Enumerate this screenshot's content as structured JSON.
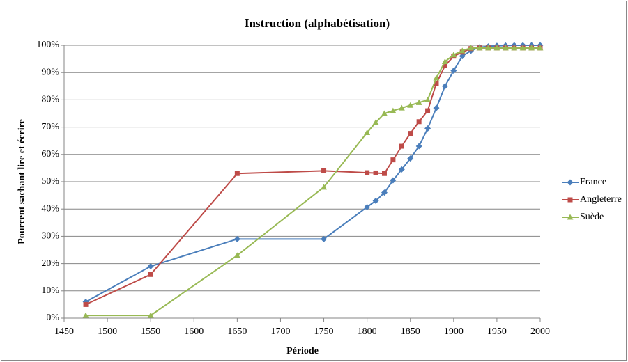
{
  "chart_data": {
    "type": "line",
    "title": "Instruction (alphabétisation)",
    "x_label": "Période",
    "y_label": "Pourcent sachant lire et écrire",
    "x": [
      1475,
      1550,
      1650,
      1750,
      1800,
      1810,
      1820,
      1830,
      1840,
      1850,
      1860,
      1870,
      1880,
      1890,
      1900,
      1910,
      1920,
      1930,
      1940,
      1950,
      1960,
      1970,
      1980,
      1990,
      2000
    ],
    "series": [
      {
        "name": "France",
        "color": "#4a7ebb",
        "marker": "diamond",
        "values": [
          6,
          19,
          29,
          29,
          40.7,
          43,
          46,
          50.5,
          54.5,
          58.5,
          63,
          69.5,
          77,
          85,
          90.7,
          96,
          98,
          99.3,
          99.6,
          99.8,
          99.9,
          100,
          100,
          100,
          100
        ]
      },
      {
        "name": "Angleterre",
        "color": "#be4b48",
        "marker": "square",
        "values": [
          5,
          16,
          53,
          54,
          53.3,
          53.2,
          53,
          58,
          63,
          67.7,
          72,
          76,
          86,
          92.5,
          96,
          97.5,
          98.8,
          99,
          99,
          99,
          99,
          99,
          99,
          99,
          99
        ]
      },
      {
        "name": "Suède",
        "color": "#98b954",
        "marker": "triangle",
        "values": [
          1,
          1,
          23,
          48,
          68,
          71.7,
          75,
          76,
          77,
          78,
          79,
          80,
          88,
          94,
          96.5,
          98,
          99,
          99,
          99,
          99,
          99,
          99,
          99,
          99,
          99
        ]
      }
    ],
    "xlim": [
      1450,
      2000
    ],
    "xticks": [
      1450,
      1500,
      1550,
      1600,
      1650,
      1700,
      1750,
      1800,
      1850,
      1900,
      1950,
      2000
    ],
    "ylim": [
      0,
      100
    ],
    "yticks": [
      {
        "value": 0,
        "label": "0%"
      },
      {
        "value": 10,
        "label": "10%"
      },
      {
        "value": 20,
        "label": "20%"
      },
      {
        "value": 30,
        "label": "30%"
      },
      {
        "value": 40,
        "label": "40%"
      },
      {
        "value": 50,
        "label": "50%"
      },
      {
        "value": 60,
        "label": "60%"
      },
      {
        "value": 70,
        "label": "70%"
      },
      {
        "value": 80,
        "label": "80%"
      },
      {
        "value": 90,
        "label": "90%"
      },
      {
        "value": 100,
        "label": "100%"
      }
    ],
    "grid": true,
    "legend": "right"
  }
}
